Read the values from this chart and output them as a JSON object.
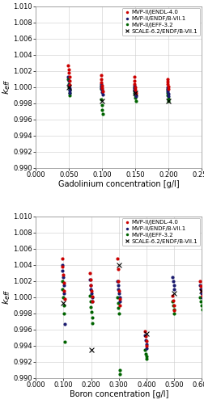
{
  "upper": {
    "xlabel": "Gadolinium concentration [g/l]",
    "ylabel": "$k_{eff}$",
    "xlim": [
      0.0,
      0.25
    ],
    "ylim": [
      0.99,
      1.01
    ],
    "xticks": [
      0.0,
      0.05,
      0.1,
      0.15,
      0.2,
      0.25
    ],
    "yticks": [
      0.99,
      0.992,
      0.994,
      0.996,
      0.998,
      1.0,
      1.002,
      1.004,
      1.006,
      1.008,
      1.01
    ],
    "series": {
      "red": {
        "label": "MVP-II/JENDL-4.0",
        "color": "#cc0000",
        "x": [
          0.049,
          0.0495,
          0.05,
          0.0505,
          0.051,
          0.0515,
          0.098,
          0.0985,
          0.099,
          0.0995,
          0.1,
          0.1005,
          0.148,
          0.1485,
          0.149,
          0.1495,
          0.15,
          0.1505,
          0.198,
          0.1985,
          0.199,
          0.1995,
          0.2
        ],
        "y": [
          1.0027,
          1.0022,
          1.0018,
          1.0013,
          1.0008,
          1.0003,
          1.0015,
          1.001,
          1.0006,
          1.0002,
          0.9999,
          0.9995,
          1.0013,
          1.0008,
          1.0004,
          1.0,
          0.9997,
          0.9993,
          1.001,
          1.0007,
          1.0004,
          1.0001,
          0.9998
        ]
      },
      "darkblue": {
        "label": "MVP-II/ENDF/B-VII.1",
        "color": "#1a1a6e",
        "x": [
          0.049,
          0.0495,
          0.05,
          0.0505,
          0.051,
          0.0515,
          0.098,
          0.0985,
          0.099,
          0.0995,
          0.1,
          0.1005,
          0.148,
          0.1485,
          0.149,
          0.1495,
          0.15,
          0.1505,
          0.198,
          0.1985,
          0.199,
          0.1995,
          0.2
        ],
        "y": [
          1.0013,
          1.0008,
          1.0003,
          0.9999,
          0.9996,
          0.9993,
          1.0004,
          1.0001,
          0.9999,
          0.9997,
          0.9994,
          0.9991,
          1.0002,
          0.9999,
          0.9997,
          0.9994,
          0.9992,
          0.9989,
          1.0,
          0.9998,
          0.9995,
          0.9992,
          0.9989
        ]
      },
      "green": {
        "label": "MVP-II/JEFF-3.2",
        "color": "#006400",
        "x": [
          0.049,
          0.0495,
          0.05,
          0.0505,
          0.051,
          0.0515,
          0.098,
          0.0985,
          0.099,
          0.0995,
          0.1,
          0.1005,
          0.148,
          0.1485,
          0.149,
          0.1495,
          0.15,
          0.1505,
          0.198,
          0.1985,
          0.199,
          0.1995,
          0.2
        ],
        "y": [
          1.001,
          1.0004,
          1.0,
          0.9997,
          0.9993,
          0.999,
          1.0002,
          0.9998,
          0.9985,
          0.9978,
          0.9972,
          0.9967,
          1.0,
          0.9996,
          0.9993,
          0.999,
          0.9987,
          0.9983,
          0.9997,
          0.9993,
          0.999,
          0.9986,
          0.9983
        ]
      },
      "cross": {
        "label": "SCALE-6.2/ENDF/B-VII.1",
        "color": "#000000",
        "x": [
          0.05,
          0.1,
          0.15,
          0.2
        ],
        "y": [
          1.0,
          0.9983,
          0.9993,
          0.9983
        ]
      }
    }
  },
  "lower": {
    "xlabel": "Boron concentration [g/l]",
    "ylabel": "$k_{eff}$",
    "xlim": [
      0.0,
      0.6
    ],
    "ylim": [
      0.99,
      1.01
    ],
    "xticks": [
      0.0,
      0.1,
      0.2,
      0.3,
      0.4,
      0.5,
      0.6
    ],
    "yticks": [
      0.99,
      0.992,
      0.994,
      0.996,
      0.998,
      1.0,
      1.002,
      1.004,
      1.006,
      1.008,
      1.01
    ],
    "series": {
      "red": {
        "label": "MVP-II/JENDL-4.0",
        "color": "#cc0000",
        "x": [
          0.095,
          0.097,
          0.099,
          0.101,
          0.103,
          0.105,
          0.195,
          0.197,
          0.199,
          0.201,
          0.203,
          0.205,
          0.295,
          0.297,
          0.299,
          0.301,
          0.303,
          0.305,
          0.395,
          0.397,
          0.399,
          0.401,
          0.495,
          0.497,
          0.499,
          0.501,
          0.595,
          0.597,
          0.599,
          0.601
        ],
        "y": [
          1.0048,
          1.0038,
          1.0028,
          1.0018,
          1.0008,
          0.9998,
          1.003,
          1.0022,
          1.0015,
          1.0008,
          1.0001,
          0.9995,
          1.0048,
          1.0035,
          1.002,
          1.0008,
          0.9998,
          0.999,
          0.9958,
          0.9952,
          0.9946,
          0.994,
          1.0002,
          0.9996,
          0.999,
          0.9984,
          1.002,
          1.0014,
          1.0008,
          1.0002
        ]
      },
      "darkblue": {
        "label": "MVP-II/ENDF/B-VII.1",
        "color": "#1a1a6e",
        "x": [
          0.095,
          0.097,
          0.099,
          0.101,
          0.103,
          0.105,
          0.195,
          0.197,
          0.199,
          0.201,
          0.203,
          0.205,
          0.295,
          0.297,
          0.299,
          0.301,
          0.303,
          0.305,
          0.395,
          0.397,
          0.399,
          0.401,
          0.495,
          0.497,
          0.499,
          0.501,
          0.595,
          0.597,
          0.599,
          0.601
        ],
        "y": [
          1.004,
          1.0033,
          1.0025,
          1.0015,
          1.0005,
          0.9967,
          1.0022,
          1.0015,
          1.001,
          1.0005,
          1.0,
          0.9995,
          1.002,
          1.0015,
          1.001,
          1.0005,
          1.0,
          0.9995,
          0.9953,
          0.9947,
          0.9942,
          0.9937,
          1.0025,
          1.002,
          1.0015,
          1.001,
          1.0015,
          1.001,
          1.0005,
          1.0
        ]
      },
      "green": {
        "label": "MVP-II/JEFF-3.2",
        "color": "#006400",
        "x": [
          0.095,
          0.097,
          0.099,
          0.101,
          0.103,
          0.105,
          0.195,
          0.197,
          0.199,
          0.201,
          0.203,
          0.205,
          0.295,
          0.297,
          0.299,
          0.301,
          0.303,
          0.305,
          0.395,
          0.397,
          0.399,
          0.401,
          0.495,
          0.497,
          0.499,
          0.501,
          0.595,
          0.597,
          0.599,
          0.601
        ],
        "y": [
          1.002,
          1.001,
          1.0,
          0.999,
          0.998,
          0.9945,
          1.0002,
          0.9995,
          0.9988,
          0.9982,
          0.9975,
          0.9968,
          1.0,
          0.9993,
          0.9987,
          0.998,
          0.991,
          0.9905,
          0.9935,
          0.993,
          0.9927,
          0.9924,
          0.9995,
          0.999,
          0.9985,
          0.998,
          1.0,
          0.9995,
          0.999,
          0.9985
        ]
      },
      "cross": {
        "label": "SCALE-6.2/ENDF/B-VII.1",
        "color": "#000000",
        "x": [
          0.1,
          0.2,
          0.3,
          0.4,
          0.5,
          0.6
        ],
        "y": [
          0.9993,
          0.9935,
          1.004,
          0.9955,
          1.0005,
          1.0008
        ]
      }
    }
  },
  "marker_size": 3,
  "fontsize_tick": 6,
  "fontsize_label": 7,
  "fontsize_legend": 5.0
}
